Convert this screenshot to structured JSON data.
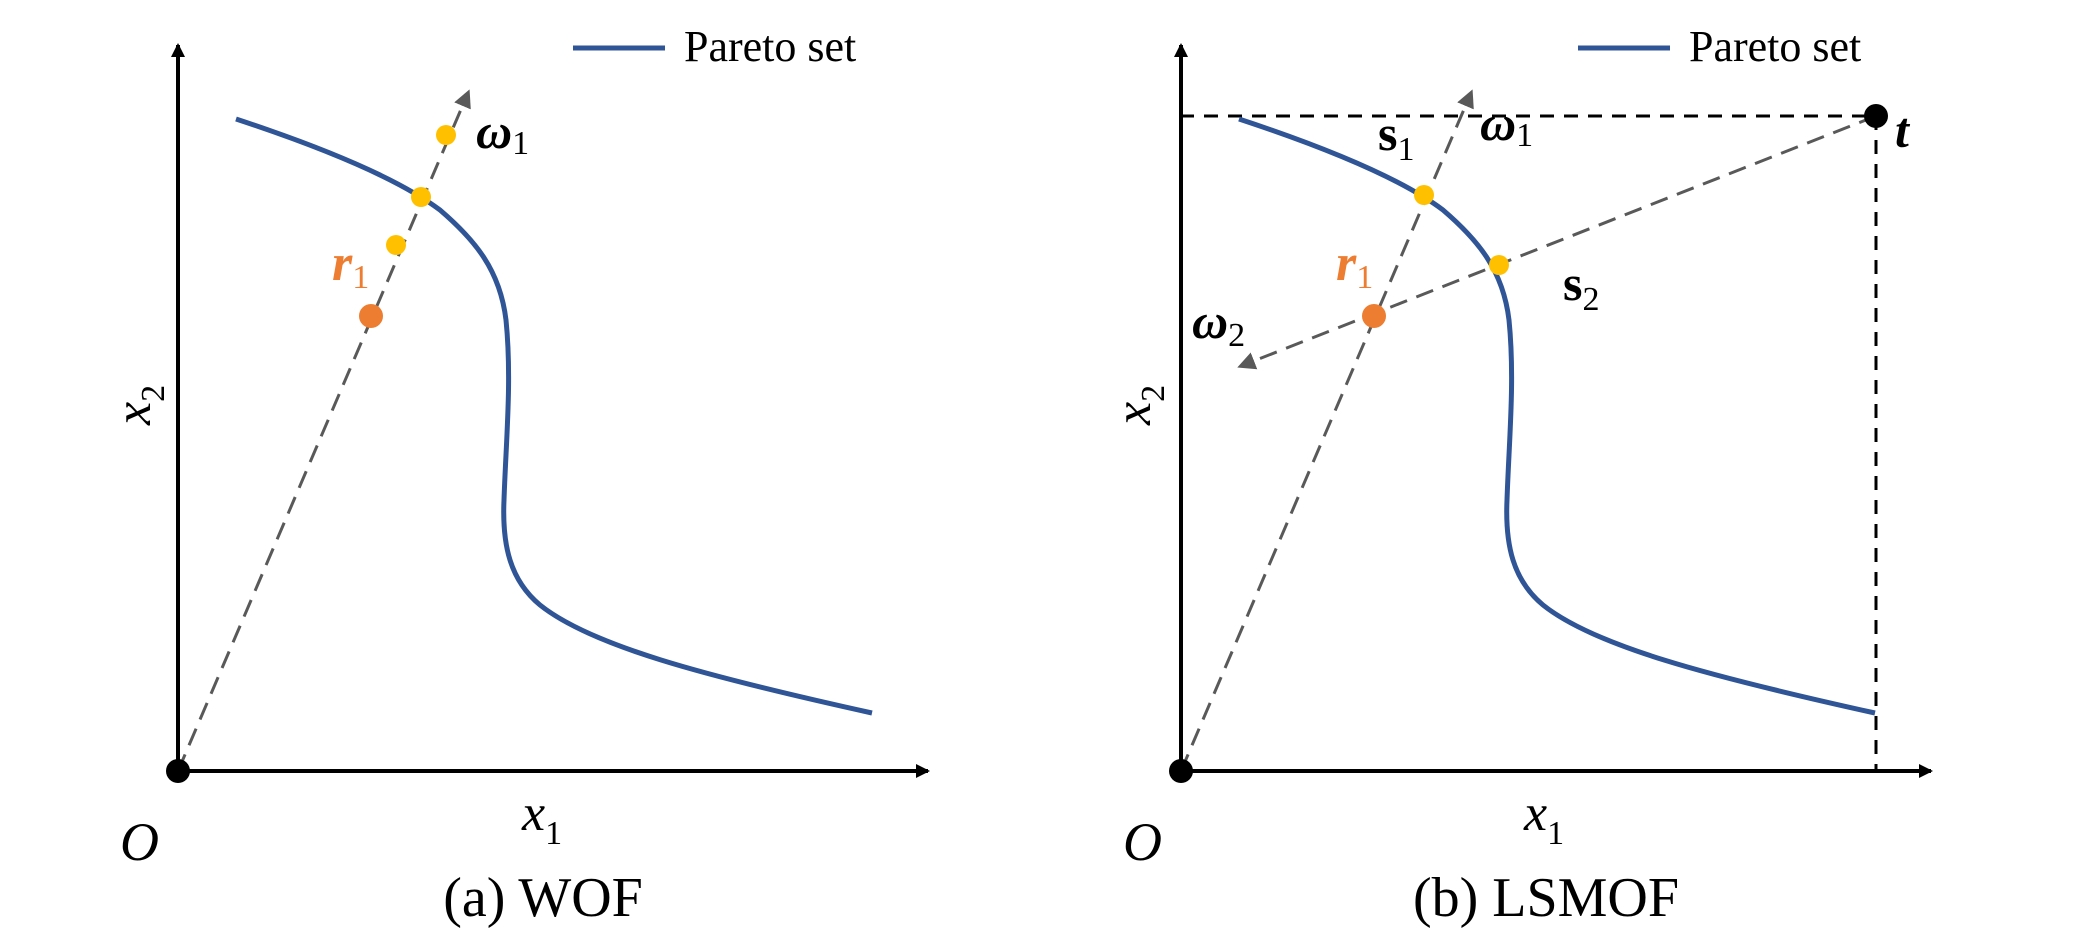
{
  "colors": {
    "axis": "#000000",
    "curve": "#2f5597",
    "dashed_ray": "#595959",
    "boundary": "#000000",
    "yellow_point": "#ffc000",
    "orange_point": "#ed7d31",
    "label_text": "#000000",
    "r_label": "#ed7d31"
  },
  "panel_a": {
    "legend": "Pareto set",
    "caption": "(a) WOF",
    "x_label": {
      "base": "x",
      "sub": "1"
    },
    "y_label": {
      "base": "x",
      "sub": "2"
    },
    "origin": "O",
    "omega1": {
      "base": "ω",
      "sub": "1"
    },
    "r1": {
      "base": "r",
      "sub": "1"
    }
  },
  "panel_b": {
    "legend": "Pareto set",
    "caption": "(b) LSMOF",
    "x_label": {
      "base": "x",
      "sub": "1"
    },
    "y_label": {
      "base": "x",
      "sub": "2"
    },
    "origin": "O",
    "omega1": {
      "base": "ω",
      "sub": "1"
    },
    "omega2": {
      "base": "ω",
      "sub": "2"
    },
    "s1": {
      "base": "s",
      "sub": "1"
    },
    "s2": {
      "base": "s",
      "sub": "2"
    },
    "r1": {
      "base": "r",
      "sub": "1"
    },
    "t": "t"
  }
}
